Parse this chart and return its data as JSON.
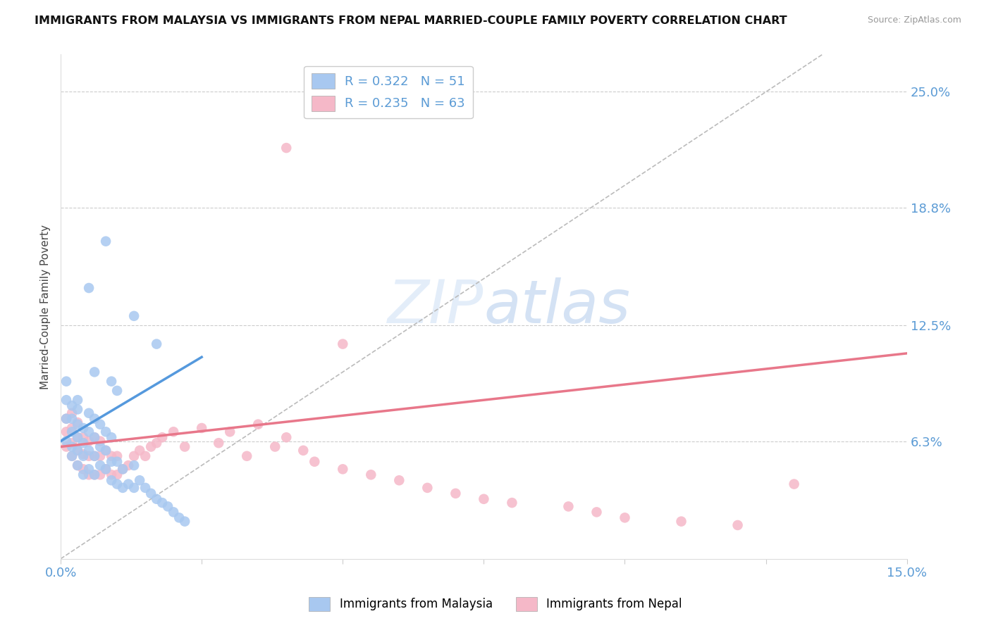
{
  "title": "IMMIGRANTS FROM MALAYSIA VS IMMIGRANTS FROM NEPAL MARRIED-COUPLE FAMILY POVERTY CORRELATION CHART",
  "source": "Source: ZipAtlas.com",
  "ylabel": "Married-Couple Family Poverty",
  "xlim": [
    0.0,
    0.15
  ],
  "ylim": [
    0.0,
    0.27
  ],
  "xticks": [
    0.0,
    0.025,
    0.05,
    0.075,
    0.1,
    0.125,
    0.15
  ],
  "xtick_labels": [
    "0.0%",
    "",
    "",
    "",
    "",
    "",
    "15.0%"
  ],
  "ytick_labels_right": [
    "25.0%",
    "18.8%",
    "12.5%",
    "6.3%"
  ],
  "ytick_vals_right": [
    0.25,
    0.188,
    0.125,
    0.063
  ],
  "malaysia_color": "#a8c8f0",
  "nepal_color": "#f5b8c8",
  "malaysia_line_color": "#5599dd",
  "nepal_line_color": "#e8778a",
  "ref_line_color": "#bbbbbb",
  "malaysia_R": 0.322,
  "malaysia_N": 51,
  "nepal_R": 0.235,
  "nepal_N": 63,
  "watermark_text": "ZIPatlas",
  "malaysia_x": [
    0.001,
    0.001,
    0.001,
    0.001,
    0.002,
    0.002,
    0.002,
    0.002,
    0.002,
    0.003,
    0.003,
    0.003,
    0.003,
    0.003,
    0.004,
    0.004,
    0.004,
    0.004,
    0.005,
    0.005,
    0.005,
    0.005,
    0.006,
    0.006,
    0.006,
    0.006,
    0.007,
    0.007,
    0.007,
    0.008,
    0.008,
    0.008,
    0.009,
    0.009,
    0.009,
    0.01,
    0.01,
    0.011,
    0.011,
    0.012,
    0.013,
    0.013,
    0.014,
    0.015,
    0.016,
    0.017,
    0.018,
    0.019,
    0.02,
    0.021,
    0.022
  ],
  "malaysia_y": [
    0.063,
    0.075,
    0.085,
    0.095,
    0.055,
    0.06,
    0.068,
    0.075,
    0.082,
    0.05,
    0.058,
    0.065,
    0.072,
    0.08,
    0.045,
    0.055,
    0.062,
    0.07,
    0.048,
    0.058,
    0.068,
    0.078,
    0.045,
    0.055,
    0.065,
    0.075,
    0.05,
    0.06,
    0.072,
    0.048,
    0.058,
    0.068,
    0.042,
    0.052,
    0.065,
    0.04,
    0.052,
    0.038,
    0.048,
    0.04,
    0.038,
    0.05,
    0.042,
    0.038,
    0.035,
    0.032,
    0.03,
    0.028,
    0.025,
    0.022,
    0.02
  ],
  "malaysia_outliers_x": [
    0.008,
    0.005,
    0.013,
    0.017,
    0.006,
    0.009,
    0.01,
    0.003
  ],
  "malaysia_outliers_y": [
    0.17,
    0.145,
    0.13,
    0.115,
    0.1,
    0.095,
    0.09,
    0.085
  ],
  "nepal_x": [
    0.001,
    0.001,
    0.001,
    0.002,
    0.002,
    0.002,
    0.002,
    0.003,
    0.003,
    0.003,
    0.003,
    0.004,
    0.004,
    0.004,
    0.005,
    0.005,
    0.005,
    0.006,
    0.006,
    0.006,
    0.007,
    0.007,
    0.007,
    0.008,
    0.008,
    0.009,
    0.009,
    0.01,
    0.01,
    0.011,
    0.012,
    0.013,
    0.014,
    0.015,
    0.016,
    0.017,
    0.018,
    0.02,
    0.022,
    0.025,
    0.028,
    0.03,
    0.033,
    0.035,
    0.038,
    0.04,
    0.043,
    0.045,
    0.05,
    0.055,
    0.06,
    0.065,
    0.07,
    0.075,
    0.08,
    0.09,
    0.095,
    0.1,
    0.11,
    0.12,
    0.13,
    0.04,
    0.05
  ],
  "nepal_y": [
    0.06,
    0.068,
    0.075,
    0.055,
    0.062,
    0.07,
    0.078,
    0.05,
    0.058,
    0.065,
    0.073,
    0.048,
    0.056,
    0.065,
    0.045,
    0.055,
    0.063,
    0.045,
    0.055,
    0.065,
    0.045,
    0.055,
    0.063,
    0.048,
    0.058,
    0.045,
    0.055,
    0.045,
    0.055,
    0.048,
    0.05,
    0.055,
    0.058,
    0.055,
    0.06,
    0.062,
    0.065,
    0.068,
    0.06,
    0.07,
    0.062,
    0.068,
    0.055,
    0.072,
    0.06,
    0.065,
    0.058,
    0.052,
    0.048,
    0.045,
    0.042,
    0.038,
    0.035,
    0.032,
    0.03,
    0.028,
    0.025,
    0.022,
    0.02,
    0.018,
    0.04,
    0.22,
    0.115
  ],
  "nepal_outliers_x": [
    0.04
  ],
  "nepal_outliers_y": [
    0.215
  ],
  "mal_line_x": [
    0.0,
    0.025
  ],
  "mal_line_y": [
    0.063,
    0.108
  ],
  "nep_line_x": [
    0.0,
    0.15
  ],
  "nep_line_y": [
    0.06,
    0.11
  ],
  "ref_line_x": [
    0.0,
    0.135
  ],
  "ref_line_y": [
    0.0,
    0.27
  ]
}
